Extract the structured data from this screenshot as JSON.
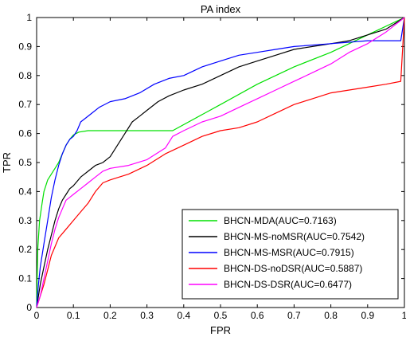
{
  "chart_data": {
    "type": "line",
    "title": "PA index",
    "xlabel": "FPR",
    "ylabel": "TPR",
    "xlim": [
      0,
      1
    ],
    "ylim": [
      0,
      1
    ],
    "xticks": [
      "0",
      "0.1",
      "0.2",
      "0.3",
      "0.4",
      "0.5",
      "0.6",
      "0.7",
      "0.8",
      "0.9",
      "1"
    ],
    "yticks": [
      "0",
      "0.1",
      "0.2",
      "0.3",
      "0.4",
      "0.5",
      "0.6",
      "0.7",
      "0.8",
      "0.9",
      "1"
    ],
    "grid": false,
    "legend_position": "bottom-right",
    "series": [
      {
        "name": "BHCN-MDA(AUC=0.7163)",
        "color": "#00e000",
        "points": [
          [
            0,
            0
          ],
          [
            0.003,
            0.2
          ],
          [
            0.008,
            0.3
          ],
          [
            0.015,
            0.36
          ],
          [
            0.02,
            0.4
          ],
          [
            0.03,
            0.44
          ],
          [
            0.04,
            0.46
          ],
          [
            0.05,
            0.48
          ],
          [
            0.06,
            0.5
          ],
          [
            0.07,
            0.53
          ],
          [
            0.08,
            0.56
          ],
          [
            0.09,
            0.58
          ],
          [
            0.1,
            0.595
          ],
          [
            0.115,
            0.605
          ],
          [
            0.14,
            0.61
          ],
          [
            0.2,
            0.61
          ],
          [
            0.3,
            0.61
          ],
          [
            0.37,
            0.61
          ],
          [
            0.5,
            0.7
          ],
          [
            0.6,
            0.77
          ],
          [
            0.7,
            0.83
          ],
          [
            0.8,
            0.88
          ],
          [
            0.9,
            0.94
          ],
          [
            1,
            1
          ]
        ]
      },
      {
        "name": "BHCN-MS-noMSR(AUC=0.7542)",
        "color": "#000000",
        "points": [
          [
            0,
            0
          ],
          [
            0.01,
            0.08
          ],
          [
            0.02,
            0.14
          ],
          [
            0.03,
            0.2
          ],
          [
            0.04,
            0.25
          ],
          [
            0.05,
            0.3
          ],
          [
            0.06,
            0.34
          ],
          [
            0.07,
            0.37
          ],
          [
            0.08,
            0.39
          ],
          [
            0.09,
            0.41
          ],
          [
            0.1,
            0.42
          ],
          [
            0.12,
            0.45
          ],
          [
            0.14,
            0.47
          ],
          [
            0.16,
            0.49
          ],
          [
            0.18,
            0.5
          ],
          [
            0.2,
            0.52
          ],
          [
            0.22,
            0.56
          ],
          [
            0.24,
            0.6
          ],
          [
            0.26,
            0.64
          ],
          [
            0.28,
            0.66
          ],
          [
            0.3,
            0.68
          ],
          [
            0.33,
            0.71
          ],
          [
            0.36,
            0.73
          ],
          [
            0.4,
            0.75
          ],
          [
            0.45,
            0.77
          ],
          [
            0.5,
            0.8
          ],
          [
            0.55,
            0.83
          ],
          [
            0.6,
            0.85
          ],
          [
            0.65,
            0.87
          ],
          [
            0.7,
            0.89
          ],
          [
            0.75,
            0.9
          ],
          [
            0.8,
            0.91
          ],
          [
            0.85,
            0.92
          ],
          [
            0.9,
            0.94
          ],
          [
            0.95,
            0.96
          ],
          [
            1,
            1
          ]
        ]
      },
      {
        "name": "BHCN-MS-MSR(AUC=0.7915)",
        "color": "#0000ff",
        "points": [
          [
            0,
            0
          ],
          [
            0.005,
            0.08
          ],
          [
            0.01,
            0.14
          ],
          [
            0.02,
            0.22
          ],
          [
            0.03,
            0.3
          ],
          [
            0.04,
            0.38
          ],
          [
            0.05,
            0.44
          ],
          [
            0.06,
            0.49
          ],
          [
            0.07,
            0.53
          ],
          [
            0.08,
            0.56
          ],
          [
            0.09,
            0.58
          ],
          [
            0.1,
            0.59
          ],
          [
            0.11,
            0.61
          ],
          [
            0.12,
            0.64
          ],
          [
            0.13,
            0.65
          ],
          [
            0.15,
            0.67
          ],
          [
            0.17,
            0.69
          ],
          [
            0.2,
            0.71
          ],
          [
            0.24,
            0.72
          ],
          [
            0.28,
            0.74
          ],
          [
            0.32,
            0.77
          ],
          [
            0.36,
            0.79
          ],
          [
            0.4,
            0.8
          ],
          [
            0.45,
            0.83
          ],
          [
            0.5,
            0.85
          ],
          [
            0.55,
            0.87
          ],
          [
            0.6,
            0.88
          ],
          [
            0.65,
            0.89
          ],
          [
            0.7,
            0.9
          ],
          [
            0.8,
            0.91
          ],
          [
            0.9,
            0.92
          ],
          [
            0.96,
            0.92
          ],
          [
            0.99,
            0.92
          ],
          [
            1,
            1
          ]
        ]
      },
      {
        "name": "BHCN-DS-noDSR(AUC=0.5887)",
        "color": "#ff0000",
        "points": [
          [
            0,
            0
          ],
          [
            0.01,
            0.04
          ],
          [
            0.02,
            0.08
          ],
          [
            0.03,
            0.13
          ],
          [
            0.04,
            0.18
          ],
          [
            0.05,
            0.21
          ],
          [
            0.06,
            0.24
          ],
          [
            0.08,
            0.27
          ],
          [
            0.1,
            0.3
          ],
          [
            0.12,
            0.33
          ],
          [
            0.14,
            0.36
          ],
          [
            0.16,
            0.4
          ],
          [
            0.18,
            0.43
          ],
          [
            0.2,
            0.44
          ],
          [
            0.25,
            0.46
          ],
          [
            0.3,
            0.49
          ],
          [
            0.35,
            0.53
          ],
          [
            0.4,
            0.56
          ],
          [
            0.45,
            0.59
          ],
          [
            0.5,
            0.61
          ],
          [
            0.55,
            0.62
          ],
          [
            0.6,
            0.64
          ],
          [
            0.65,
            0.67
          ],
          [
            0.7,
            0.7
          ],
          [
            0.75,
            0.72
          ],
          [
            0.8,
            0.74
          ],
          [
            0.85,
            0.75
          ],
          [
            0.9,
            0.76
          ],
          [
            0.95,
            0.77
          ],
          [
            0.99,
            0.78
          ],
          [
            1,
            1
          ]
        ]
      },
      {
        "name": "BHCN-DS-DSR(AUC=0.6477)",
        "color": "#ff00ff",
        "points": [
          [
            0,
            0
          ],
          [
            0.01,
            0.04
          ],
          [
            0.02,
            0.1
          ],
          [
            0.03,
            0.16
          ],
          [
            0.04,
            0.22
          ],
          [
            0.05,
            0.27
          ],
          [
            0.06,
            0.31
          ],
          [
            0.07,
            0.34
          ],
          [
            0.08,
            0.37
          ],
          [
            0.09,
            0.38
          ],
          [
            0.1,
            0.39
          ],
          [
            0.12,
            0.41
          ],
          [
            0.14,
            0.43
          ],
          [
            0.16,
            0.45
          ],
          [
            0.18,
            0.47
          ],
          [
            0.2,
            0.48
          ],
          [
            0.25,
            0.49
          ],
          [
            0.3,
            0.51
          ],
          [
            0.35,
            0.55
          ],
          [
            0.37,
            0.59
          ],
          [
            0.4,
            0.61
          ],
          [
            0.45,
            0.64
          ],
          [
            0.5,
            0.66
          ],
          [
            0.55,
            0.69
          ],
          [
            0.6,
            0.72
          ],
          [
            0.65,
            0.75
          ],
          [
            0.7,
            0.78
          ],
          [
            0.75,
            0.81
          ],
          [
            0.8,
            0.84
          ],
          [
            0.85,
            0.88
          ],
          [
            0.9,
            0.91
          ],
          [
            0.95,
            0.95
          ],
          [
            1,
            1
          ]
        ]
      }
    ]
  }
}
